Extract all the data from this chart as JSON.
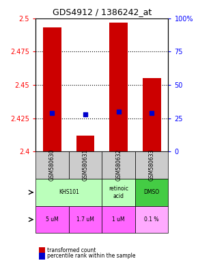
{
  "title": "GDS4912 / 1386242_at",
  "samples": [
    "GSM580630",
    "GSM580631",
    "GSM580632",
    "GSM580633"
  ],
  "bar_bottoms": [
    2.4,
    2.4,
    2.4,
    2.4
  ],
  "bar_tops": [
    2.493,
    2.412,
    2.497,
    2.455
  ],
  "percentile_values": [
    2.429,
    2.428,
    2.43,
    2.429
  ],
  "ylim": [
    2.4,
    2.5
  ],
  "yticks_left": [
    2.4,
    2.425,
    2.45,
    2.475,
    2.5
  ],
  "yticks_right": [
    0,
    25,
    50,
    75,
    100
  ],
  "ytick_labels_right": [
    "0",
    "25",
    "50",
    "75",
    "100%"
  ],
  "bar_color": "#cc0000",
  "percentile_color": "#0000cc",
  "agent_row": [
    {
      "label": "KHS101",
      "colspan": 2,
      "color": "#aaffaa"
    },
    {
      "label": "retinoic\nacid",
      "colspan": 1,
      "color": "#aaffaa"
    },
    {
      "label": "DMSO",
      "colspan": 1,
      "color": "#00cc00"
    }
  ],
  "dose_row": [
    {
      "label": "5 uM",
      "color": "#ff88ff"
    },
    {
      "label": "1.7 uM",
      "color": "#ff88ff"
    },
    {
      "label": "1 uM",
      "color": "#ff88ff"
    },
    {
      "label": "0.1 %",
      "color": "#ffccff"
    }
  ],
  "sample_bg_color": "#cccccc",
  "legend_items": [
    {
      "color": "#cc0000",
      "label": "transformed count"
    },
    {
      "color": "#0000cc",
      "label": "percentile rank within the sample"
    }
  ],
  "grid_color": "#000000",
  "dotted_yticks": [
    2.425,
    2.45,
    2.475
  ]
}
